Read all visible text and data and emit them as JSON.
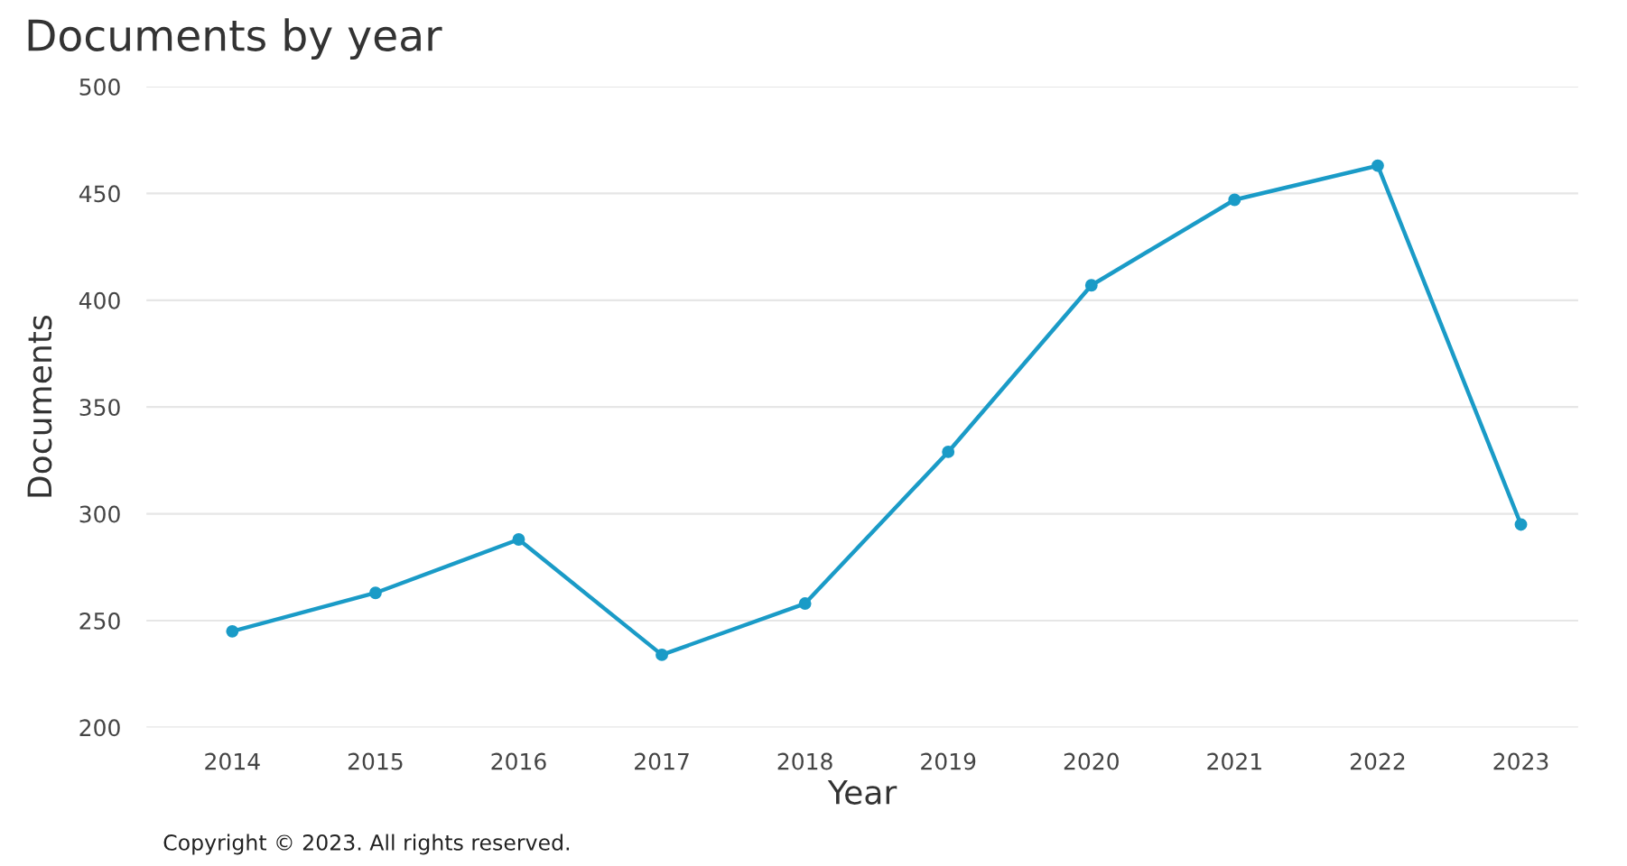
{
  "chart_data": {
    "type": "line",
    "title": "Documents by year",
    "xlabel": "Year",
    "ylabel": "Documents",
    "categories": [
      "2014",
      "2015",
      "2016",
      "2017",
      "2018",
      "2019",
      "2020",
      "2021",
      "2022",
      "2023"
    ],
    "series": [
      {
        "color": "#1a9bc7",
        "values": [
          245,
          263,
          288,
          234,
          258,
          329,
          407,
          447,
          463,
          295
        ]
      }
    ],
    "ylim": [
      200,
      500
    ],
    "yticks": [
      200,
      250,
      300,
      350,
      400,
      450,
      500
    ],
    "grid": "y",
    "marker": "circle",
    "line_style": "solid",
    "legend": false,
    "annotations": [
      "Copyright © 2023. All rights reserved."
    ]
  }
}
